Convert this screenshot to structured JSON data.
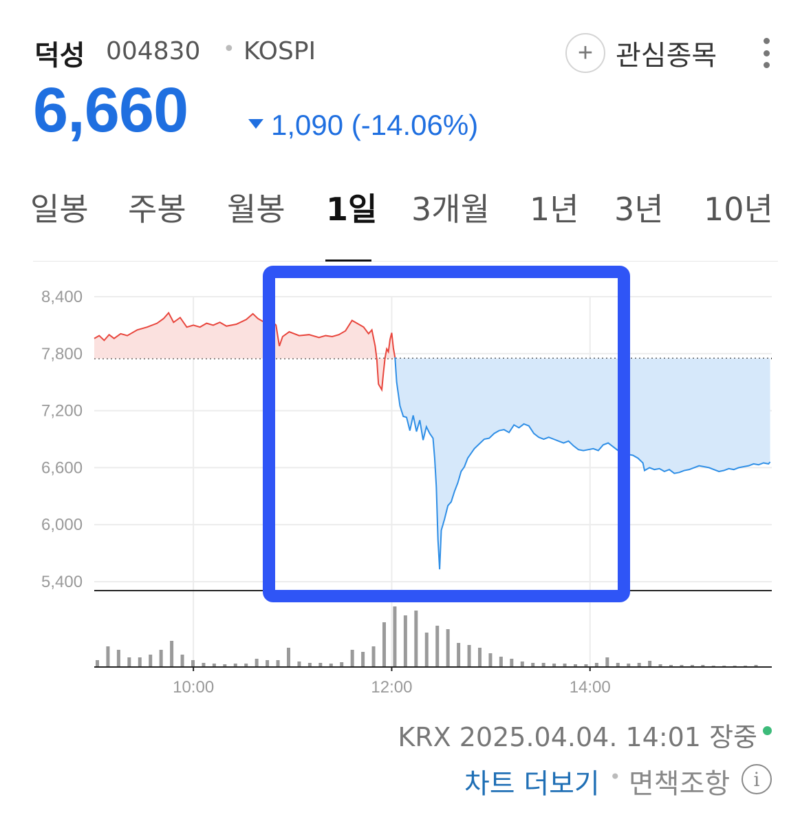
{
  "header": {
    "name": "덕성",
    "code": "004830",
    "separator": "•",
    "market": "KOSPI",
    "add_symbol": "+",
    "watch_label": "관심종목",
    "more_icon": "more-vertical-icon"
  },
  "quote": {
    "price": "6,660",
    "direction": "down",
    "change": "1,090 (-14.06%)"
  },
  "tabs": [
    {
      "label": "일봉",
      "active": false
    },
    {
      "label": "주봉",
      "active": false
    },
    {
      "label": "월봉",
      "active": false
    },
    {
      "label": "1일",
      "active": true
    },
    {
      "label": "3개월",
      "active": false
    },
    {
      "label": "1년",
      "active": false
    },
    {
      "label": "3년",
      "active": false
    },
    {
      "label": "10년",
      "active": false
    }
  ],
  "chart_data": {
    "type": "area",
    "subtype": "intraday",
    "x_ticks": [
      "10:00",
      "12:00",
      "14:00"
    ],
    "y_ticks": [
      8400,
      7800,
      7200,
      6600,
      6000,
      5400
    ],
    "y_tick_labels": [
      "8,400",
      "7,800",
      "7,200",
      "6,600",
      "6,000",
      "5,400"
    ],
    "ylim": [
      5400,
      8400
    ],
    "reference_price": 7750,
    "session_minutes": [
      0,
      410
    ],
    "x_tick_minutes": [
      60,
      180,
      300
    ],
    "price_series": [
      {
        "t": 0,
        "v": 7960
      },
      {
        "t": 3,
        "v": 7990
      },
      {
        "t": 6,
        "v": 7940
      },
      {
        "t": 9,
        "v": 8000
      },
      {
        "t": 12,
        "v": 7960
      },
      {
        "t": 16,
        "v": 8010
      },
      {
        "t": 20,
        "v": 7990
      },
      {
        "t": 26,
        "v": 8050
      },
      {
        "t": 32,
        "v": 8080
      },
      {
        "t": 38,
        "v": 8120
      },
      {
        "t": 42,
        "v": 8170
      },
      {
        "t": 45,
        "v": 8230
      },
      {
        "t": 48,
        "v": 8130
      },
      {
        "t": 52,
        "v": 8180
      },
      {
        "t": 56,
        "v": 8080
      },
      {
        "t": 60,
        "v": 8100
      },
      {
        "t": 64,
        "v": 8080
      },
      {
        "t": 68,
        "v": 8120
      },
      {
        "t": 72,
        "v": 8100
      },
      {
        "t": 76,
        "v": 8130
      },
      {
        "t": 80,
        "v": 8090
      },
      {
        "t": 86,
        "v": 8110
      },
      {
        "t": 92,
        "v": 8160
      },
      {
        "t": 96,
        "v": 8220
      },
      {
        "t": 99,
        "v": 8170
      },
      {
        "t": 103,
        "v": 8130
      },
      {
        "t": 107,
        "v": 8150
      },
      {
        "t": 110,
        "v": 8100
      },
      {
        "t": 112,
        "v": 7880
      },
      {
        "t": 114,
        "v": 7980
      },
      {
        "t": 118,
        "v": 8030
      },
      {
        "t": 124,
        "v": 7990
      },
      {
        "t": 130,
        "v": 8000
      },
      {
        "t": 136,
        "v": 7970
      },
      {
        "t": 140,
        "v": 7990
      },
      {
        "t": 144,
        "v": 7980
      },
      {
        "t": 148,
        "v": 8000
      },
      {
        "t": 152,
        "v": 8040
      },
      {
        "t": 156,
        "v": 8150
      },
      {
        "t": 160,
        "v": 8110
      },
      {
        "t": 163,
        "v": 8080
      },
      {
        "t": 166,
        "v": 8010
      },
      {
        "t": 168,
        "v": 8050
      },
      {
        "t": 170,
        "v": 7880
      },
      {
        "t": 171,
        "v": 7740
      },
      {
        "t": 172,
        "v": 7480
      },
      {
        "t": 174,
        "v": 7420
      },
      {
        "t": 175,
        "v": 7600
      },
      {
        "t": 176,
        "v": 7760
      },
      {
        "t": 177,
        "v": 7850
      },
      {
        "t": 178,
        "v": 7820
      },
      {
        "t": 179,
        "v": 7950
      },
      {
        "t": 180,
        "v": 8020
      },
      {
        "t": 181,
        "v": 7860
      },
      {
        "t": 182,
        "v": 7760
      },
      {
        "t": 183,
        "v": 7500
      },
      {
        "t": 185,
        "v": 7250
      },
      {
        "t": 187,
        "v": 7140
      },
      {
        "t": 189,
        "v": 7130
      },
      {
        "t": 191,
        "v": 6990
      },
      {
        "t": 193,
        "v": 7150
      },
      {
        "t": 195,
        "v": 6980
      },
      {
        "t": 197,
        "v": 7100
      },
      {
        "t": 199,
        "v": 6890
      },
      {
        "t": 201,
        "v": 7030
      },
      {
        "t": 203,
        "v": 6960
      },
      {
        "t": 205,
        "v": 6910
      },
      {
        "t": 206,
        "v": 6700
      },
      {
        "t": 207,
        "v": 6400
      },
      {
        "t": 208,
        "v": 5840
      },
      {
        "t": 209,
        "v": 5530
      },
      {
        "t": 210,
        "v": 5940
      },
      {
        "t": 212,
        "v": 6060
      },
      {
        "t": 214,
        "v": 6200
      },
      {
        "t": 216,
        "v": 6240
      },
      {
        "t": 218,
        "v": 6350
      },
      {
        "t": 220,
        "v": 6440
      },
      {
        "t": 222,
        "v": 6560
      },
      {
        "t": 224,
        "v": 6610
      },
      {
        "t": 226,
        "v": 6700
      },
      {
        "t": 228,
        "v": 6750
      },
      {
        "t": 230,
        "v": 6800
      },
      {
        "t": 233,
        "v": 6850
      },
      {
        "t": 236,
        "v": 6900
      },
      {
        "t": 239,
        "v": 6910
      },
      {
        "t": 242,
        "v": 6960
      },
      {
        "t": 245,
        "v": 6990
      },
      {
        "t": 248,
        "v": 7000
      },
      {
        "t": 251,
        "v": 6970
      },
      {
        "t": 254,
        "v": 7050
      },
      {
        "t": 257,
        "v": 7020
      },
      {
        "t": 260,
        "v": 7060
      },
      {
        "t": 263,
        "v": 7040
      },
      {
        "t": 266,
        "v": 6960
      },
      {
        "t": 269,
        "v": 6920
      },
      {
        "t": 272,
        "v": 6900
      },
      {
        "t": 275,
        "v": 6920
      },
      {
        "t": 278,
        "v": 6900
      },
      {
        "t": 281,
        "v": 6880
      },
      {
        "t": 284,
        "v": 6860
      },
      {
        "t": 287,
        "v": 6880
      },
      {
        "t": 290,
        "v": 6830
      },
      {
        "t": 293,
        "v": 6790
      },
      {
        "t": 296,
        "v": 6780
      },
      {
        "t": 299,
        "v": 6790
      },
      {
        "t": 302,
        "v": 6800
      },
      {
        "t": 305,
        "v": 6780
      },
      {
        "t": 308,
        "v": 6840
      },
      {
        "t": 311,
        "v": 6860
      },
      {
        "t": 314,
        "v": 6820
      },
      {
        "t": 317,
        "v": 6780
      },
      {
        "t": 320,
        "v": 6760
      },
      {
        "t": 323,
        "v": 6740
      },
      {
        "t": 326,
        "v": 6730
      },
      {
        "t": 329,
        "v": 6700
      },
      {
        "t": 332,
        "v": 6650
      },
      {
        "t": 333,
        "v": 6570
      },
      {
        "t": 336,
        "v": 6600
      },
      {
        "t": 339,
        "v": 6580
      },
      {
        "t": 342,
        "v": 6590
      },
      {
        "t": 345,
        "v": 6560
      },
      {
        "t": 348,
        "v": 6580
      },
      {
        "t": 351,
        "v": 6540
      },
      {
        "t": 354,
        "v": 6550
      },
      {
        "t": 357,
        "v": 6570
      },
      {
        "t": 360,
        "v": 6580
      },
      {
        "t": 363,
        "v": 6600
      },
      {
        "t": 366,
        "v": 6620
      },
      {
        "t": 369,
        "v": 6610
      },
      {
        "t": 372,
        "v": 6600
      },
      {
        "t": 375,
        "v": 6580
      },
      {
        "t": 378,
        "v": 6560
      },
      {
        "t": 381,
        "v": 6570
      },
      {
        "t": 384,
        "v": 6590
      },
      {
        "t": 387,
        "v": 6580
      },
      {
        "t": 390,
        "v": 6600
      },
      {
        "t": 393,
        "v": 6610
      },
      {
        "t": 396,
        "v": 6620
      },
      {
        "t": 399,
        "v": 6640
      },
      {
        "t": 402,
        "v": 6630
      },
      {
        "t": 405,
        "v": 6650
      },
      {
        "t": 408,
        "v": 6640
      },
      {
        "t": 409,
        "v": 6660
      }
    ],
    "volume_max": 100,
    "volume_series": [
      10,
      30,
      25,
      14,
      14,
      18,
      25,
      38,
      18,
      10,
      6,
      5,
      4,
      5,
      5,
      12,
      10,
      10,
      28,
      8,
      6,
      6,
      5,
      7,
      25,
      22,
      30,
      65,
      88,
      75,
      82,
      50,
      60,
      55,
      35,
      32,
      28,
      20,
      15,
      12,
      8,
      6,
      6,
      5,
      5,
      4,
      4,
      6,
      14,
      6,
      5,
      6,
      9,
      4,
      3,
      3,
      3,
      3,
      2,
      2,
      2,
      2,
      3
    ],
    "up_color": "#e8453c",
    "down_color": "#2e8ee6",
    "up_fill": "#fbe1df",
    "down_fill": "#d6e8fa",
    "highlight_box_color": "#2f55f6"
  },
  "footer": {
    "source": "KRX 2025.04.04. 14:01 장중",
    "status_color": "#3dbb7a",
    "more_chart": "차트 더보기",
    "separator": "•",
    "disclaimer": "면책조항",
    "info_icon": "info-icon",
    "info_symbol": "i"
  }
}
